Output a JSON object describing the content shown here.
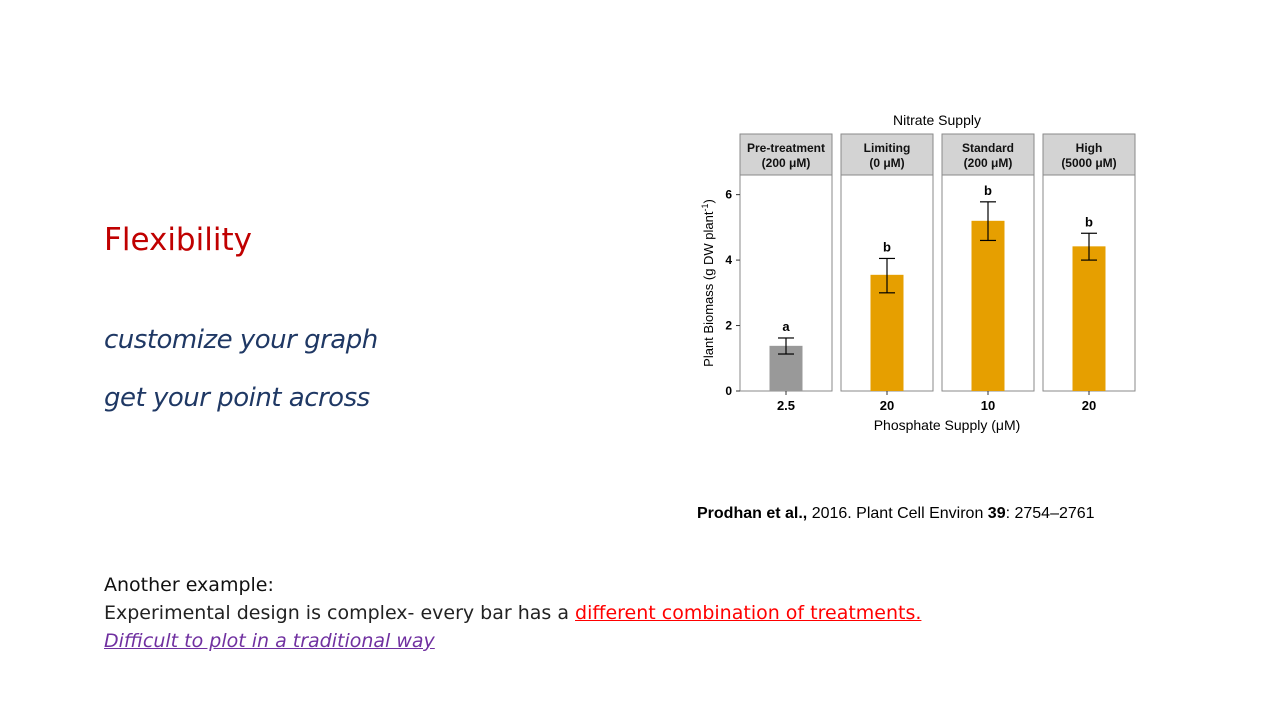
{
  "slide": {
    "heading": "Flexibility",
    "line1": "customize your graph",
    "line2": "get your point across",
    "citation": {
      "authors": "Prodhan et al.,",
      "year_journal": " 2016. Plant Cell Environ ",
      "volume": "39",
      "pages": ": 2754–2761"
    },
    "bottom": {
      "title": "Another example:",
      "line_prefix": "Experimental design is complex- every bar has a ",
      "line_emph": "different combination of treatments.",
      "line3": "Difficult to plot in a traditional way"
    }
  },
  "chart_data": {
    "type": "bar",
    "title": "Nitrate Supply",
    "xlabel": "Phosphate Supply (μM)",
    "ylabel": "Plant Biomass  (g DW plant",
    "ylabel_sup": "-1",
    "ylabel_close": ")",
    "ylim": [
      0,
      6.6
    ],
    "yticks": [
      0,
      2,
      4,
      6
    ],
    "grid": false,
    "panels": [
      {
        "strip_line1": "Pre-treatment",
        "strip_line2": "(200 μM)",
        "category": "2.5",
        "value": 1.38,
        "err_low": 1.13,
        "err_high": 1.62,
        "letter": "a",
        "color": "#999999"
      },
      {
        "strip_line1": "Limiting",
        "strip_line2": "(0 μM)",
        "category": "20",
        "value": 3.55,
        "err_low": 3.0,
        "err_high": 4.05,
        "letter": "b",
        "color": "#e69f00"
      },
      {
        "strip_line1": "Standard",
        "strip_line2": "(200 μM)",
        "category": "10",
        "value": 5.2,
        "err_low": 4.6,
        "err_high": 5.78,
        "letter": "b",
        "color": "#e69f00"
      },
      {
        "strip_line1": "High",
        "strip_line2": "(5000 μM)",
        "category": "20",
        "value": 4.42,
        "err_low": 4.0,
        "err_high": 4.82,
        "letter": "b",
        "color": "#e69f00"
      }
    ]
  }
}
